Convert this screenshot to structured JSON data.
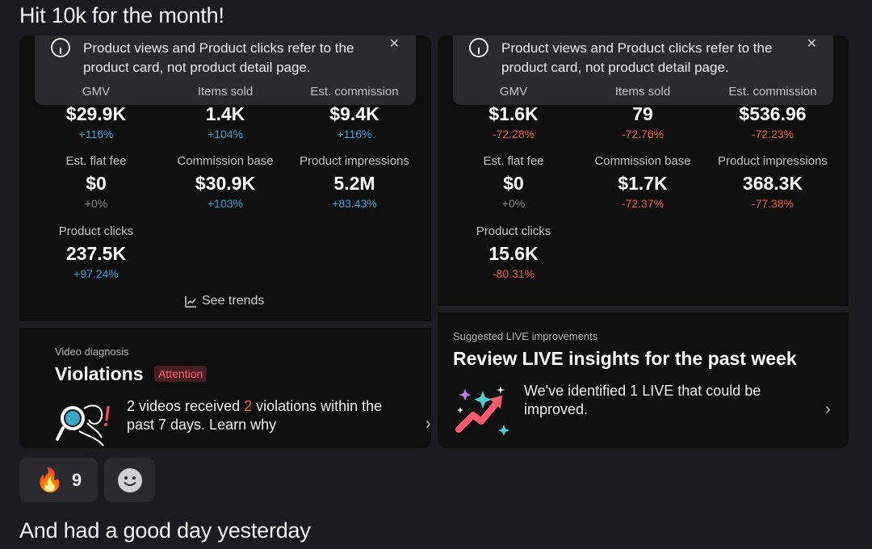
{
  "messages": {
    "first": "Hit 10k for the month!",
    "second": "And had a good day yesterday"
  },
  "info_note": {
    "line1": "Product views and Product clicks refer to the",
    "line2": "product card, not product detail page."
  },
  "left_card": {
    "metrics": [
      {
        "label": "GMV",
        "value": "$29.9K",
        "change": "+116%",
        "trend": "up"
      },
      {
        "label": "Items sold",
        "value": "1.4K",
        "change": "+104%",
        "trend": "up"
      },
      {
        "label": "Est. commission",
        "value": "$9.4K",
        "change": "+116%",
        "trend": "up"
      },
      {
        "label": "Est. flat fee",
        "value": "$0",
        "change": "+0%",
        "trend": "flat"
      },
      {
        "label": "Commission base",
        "value": "$30.9K",
        "change": "+103%",
        "trend": "up"
      },
      {
        "label": "Product impressions",
        "value": "5.2M",
        "change": "+83.43%",
        "trend": "up"
      },
      {
        "label": "Product clicks",
        "value": "237.5K",
        "change": "+97.24%",
        "trend": "up"
      }
    ],
    "see_trends": "See trends",
    "section_label": "Video diagnosis",
    "section_title": "Violations",
    "badge": "Attention",
    "desc_count1": "2",
    "desc_part1": " videos received ",
    "desc_count2": "2",
    "desc_part2": " violations within the",
    "desc_line2": "past 7 days. Learn why"
  },
  "right_card": {
    "metrics": [
      {
        "label": "GMV",
        "value": "$1.6K",
        "change": "-72.28%",
        "trend": "down"
      },
      {
        "label": "Items sold",
        "value": "79",
        "change": "-72.76%",
        "trend": "down"
      },
      {
        "label": "Est. commission",
        "value": "$536.96",
        "change": "-72.23%",
        "trend": "down"
      },
      {
        "label": "Est. flat fee",
        "value": "$0",
        "change": "+0%",
        "trend": "flat"
      },
      {
        "label": "Commission base",
        "value": "$1.7K",
        "change": "-72.37%",
        "trend": "down"
      },
      {
        "label": "Product impressions",
        "value": "368.3K",
        "change": "-77.38%",
        "trend": "down"
      },
      {
        "label": "Product clicks",
        "value": "15.6K",
        "change": "-80.31%",
        "trend": "down"
      }
    ],
    "section_label": "Suggested LIVE improvements",
    "section_title": "Review LIVE insights for the past week",
    "desc_line1": "We've identified 1 LIVE that could be",
    "desc_line2": "improved."
  },
  "reactions": {
    "fire_emoji": "🔥",
    "fire_count": "9",
    "add_reaction_icon": "smiley-icon"
  },
  "colors": {
    "up": "#34a6d8",
    "down": "#ef5a43",
    "flat": "#8a8a8a",
    "attention": "#ff5b6b"
  }
}
